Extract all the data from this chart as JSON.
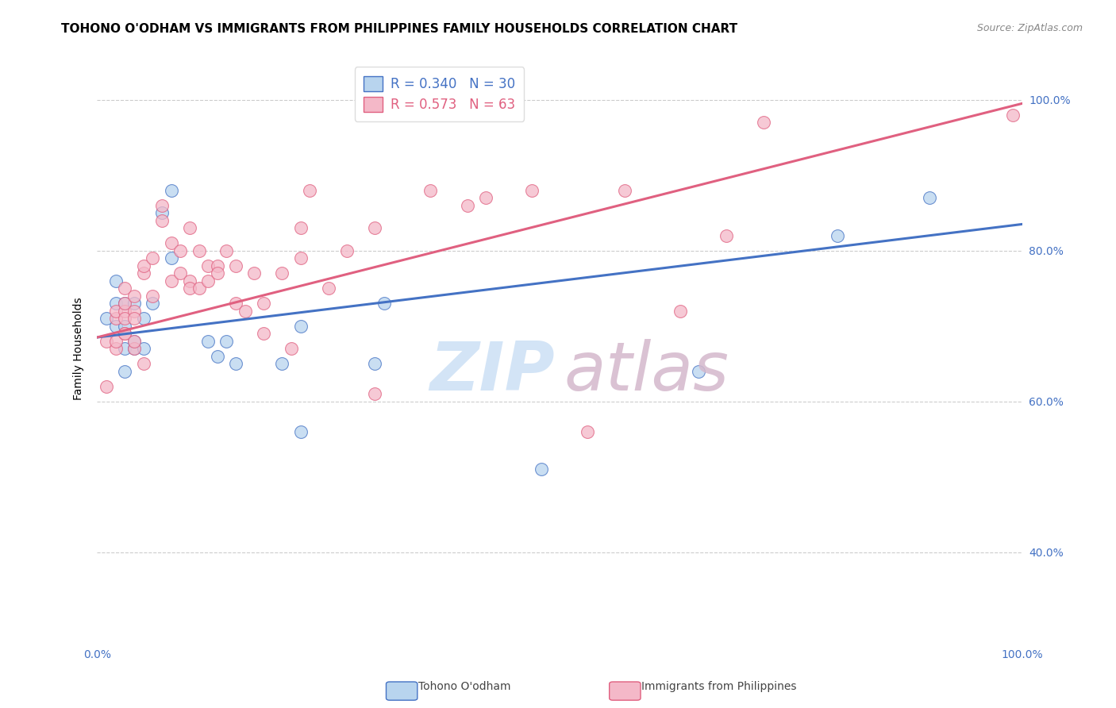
{
  "title": "TOHONO O'ODHAM VS IMMIGRANTS FROM PHILIPPINES FAMILY HOUSEHOLDS CORRELATION CHART",
  "source": "Source: ZipAtlas.com",
  "ylabel": "Family Households",
  "ytick_labels": [
    "100.0%",
    "80.0%",
    "60.0%",
    "40.0%"
  ],
  "ytick_values": [
    1.0,
    0.8,
    0.6,
    0.4
  ],
  "xmin": 0.0,
  "xmax": 1.0,
  "ymin": 0.28,
  "ymax": 1.06,
  "blue_R": 0.34,
  "blue_N": 30,
  "pink_R": 0.573,
  "pink_N": 63,
  "blue_color": "#b8d4ee",
  "pink_color": "#f4b8c8",
  "blue_line_color": "#4472c4",
  "pink_line_color": "#e06080",
  "blue_scatter_x": [
    0.01,
    0.02,
    0.02,
    0.02,
    0.03,
    0.03,
    0.03,
    0.03,
    0.04,
    0.04,
    0.04,
    0.05,
    0.05,
    0.06,
    0.07,
    0.08,
    0.08,
    0.12,
    0.13,
    0.14,
    0.15,
    0.2,
    0.22,
    0.22,
    0.3,
    0.31,
    0.48,
    0.65,
    0.8,
    0.9
  ],
  "blue_scatter_y": [
    0.71,
    0.7,
    0.73,
    0.76,
    0.67,
    0.64,
    0.7,
    0.73,
    0.67,
    0.73,
    0.68,
    0.71,
    0.67,
    0.73,
    0.85,
    0.88,
    0.79,
    0.68,
    0.66,
    0.68,
    0.65,
    0.65,
    0.56,
    0.7,
    0.65,
    0.73,
    0.51,
    0.64,
    0.82,
    0.87
  ],
  "pink_scatter_x": [
    0.01,
    0.01,
    0.02,
    0.02,
    0.02,
    0.02,
    0.03,
    0.03,
    0.03,
    0.03,
    0.03,
    0.03,
    0.04,
    0.04,
    0.04,
    0.04,
    0.04,
    0.05,
    0.05,
    0.05,
    0.06,
    0.06,
    0.07,
    0.07,
    0.08,
    0.08,
    0.09,
    0.09,
    0.1,
    0.1,
    0.1,
    0.11,
    0.11,
    0.12,
    0.12,
    0.13,
    0.13,
    0.14,
    0.15,
    0.15,
    0.16,
    0.17,
    0.18,
    0.18,
    0.2,
    0.21,
    0.22,
    0.22,
    0.23,
    0.25,
    0.27,
    0.3,
    0.3,
    0.36,
    0.4,
    0.42,
    0.47,
    0.53,
    0.57,
    0.63,
    0.68,
    0.72,
    0.99
  ],
  "pink_scatter_y": [
    0.68,
    0.62,
    0.71,
    0.67,
    0.68,
    0.72,
    0.72,
    0.75,
    0.69,
    0.71,
    0.69,
    0.73,
    0.67,
    0.68,
    0.72,
    0.74,
    0.71,
    0.65,
    0.77,
    0.78,
    0.79,
    0.74,
    0.86,
    0.84,
    0.76,
    0.81,
    0.8,
    0.77,
    0.83,
    0.76,
    0.75,
    0.8,
    0.75,
    0.78,
    0.76,
    0.78,
    0.77,
    0.8,
    0.73,
    0.78,
    0.72,
    0.77,
    0.73,
    0.69,
    0.77,
    0.67,
    0.83,
    0.79,
    0.88,
    0.75,
    0.8,
    0.83,
    0.61,
    0.88,
    0.86,
    0.87,
    0.88,
    0.56,
    0.88,
    0.72,
    0.82,
    0.97,
    0.98
  ],
  "blue_trend_x0": 0.0,
  "blue_trend_x1": 1.0,
  "blue_trend_y0": 0.685,
  "blue_trend_y1": 0.835,
  "pink_trend_x0": 0.0,
  "pink_trend_x1": 1.0,
  "pink_trend_y0": 0.685,
  "pink_trend_y1": 0.995,
  "watermark_zip_color": "#cce0f5",
  "watermark_atlas_color": "#d4b8cc",
  "background_color": "#ffffff",
  "grid_color": "#cccccc",
  "grid_linestyle": "--",
  "title_fontsize": 11,
  "source_fontsize": 9,
  "axis_label_fontsize": 10,
  "tick_fontsize": 10,
  "legend_fontsize": 12,
  "scatter_size": 130,
  "scatter_alpha": 0.75,
  "scatter_linewidth": 0.8
}
